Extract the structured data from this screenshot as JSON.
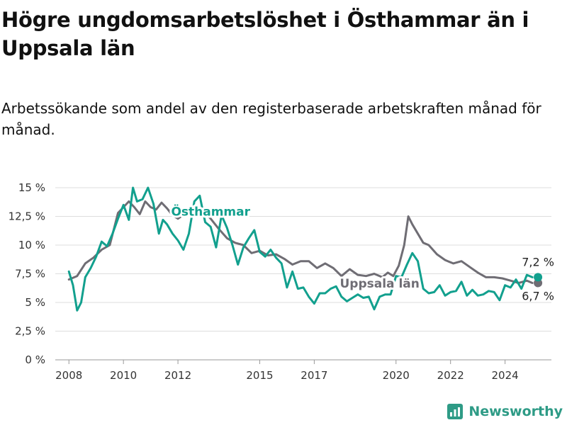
{
  "brand": {
    "name": "Newsworthy",
    "icon": "newsworthy-chart-icon",
    "color": "#2e9b86"
  },
  "colors": {
    "osthammar": "#12a08e",
    "uppsala": "#6f6d74",
    "grid": "#dddddd"
  },
  "chart_data": {
    "type": "line",
    "title": "Högre ungdomsarbetslöshet i Östhammar än i Uppsala län",
    "subtitle": "Arbetssökande som andel av den registerbaserade arbetskraften månad för månad.",
    "xlabel": "",
    "ylabel": "",
    "ylim": [
      0,
      15
    ],
    "xlim": [
      2007.5,
      2025.7
    ],
    "yticks": [
      {
        "value": 0,
        "label": "0 %"
      },
      {
        "value": 2.5,
        "label": "2,5 %"
      },
      {
        "value": 5,
        "label": "5 %"
      },
      {
        "value": 7.5,
        "label": "7,5 %"
      },
      {
        "value": 10,
        "label": "10 %"
      },
      {
        "value": 12.5,
        "label": "12,5 %"
      },
      {
        "value": 15,
        "label": "15 %"
      }
    ],
    "xticks": [
      {
        "value": 2008,
        "label": "2008"
      },
      {
        "value": 2010,
        "label": "2010"
      },
      {
        "value": 2012,
        "label": "2012"
      },
      {
        "value": 2015,
        "label": "2015"
      },
      {
        "value": 2017,
        "label": "2017"
      },
      {
        "value": 2020,
        "label": "2020"
      },
      {
        "value": 2022,
        "label": "2022"
      },
      {
        "value": 2024,
        "label": "2024"
      }
    ],
    "grid": true,
    "legend": "inline labels",
    "series": [
      {
        "name": "Uppsala län",
        "color": "#6f6d74",
        "end_label": "6,7 %",
        "x": [
          2008.0,
          2008.3,
          2008.6,
          2008.9,
          2009.2,
          2009.5,
          2009.8,
          2010.0,
          2010.2,
          2010.4,
          2010.6,
          2010.8,
          2011.0,
          2011.2,
          2011.4,
          2011.6,
          2011.8,
          2012.0,
          2012.3,
          2012.6,
          2012.9,
          2013.2,
          2013.5,
          2013.8,
          2014.1,
          2014.4,
          2014.7,
          2015.0,
          2015.3,
          2015.6,
          2015.9,
          2016.2,
          2016.5,
          2016.8,
          2017.1,
          2017.4,
          2017.7,
          2018.0,
          2018.3,
          2018.6,
          2018.9,
          2019.2,
          2019.5,
          2019.7,
          2019.9,
          2020.1,
          2020.3,
          2020.45,
          2020.6,
          2020.8,
          2021.0,
          2021.2,
          2021.5,
          2021.8,
          2022.1,
          2022.4,
          2022.7,
          2023.0,
          2023.3,
          2023.6,
          2023.9,
          2024.2,
          2024.5,
          2024.8,
          2025.0
        ],
        "values": [
          7.0,
          7.3,
          8.4,
          8.9,
          9.6,
          10.0,
          12.8,
          13.3,
          13.8,
          13.3,
          12.7,
          13.8,
          13.3,
          13.1,
          13.7,
          13.2,
          12.6,
          12.3,
          12.8,
          13.3,
          13.1,
          12.3,
          11.4,
          10.6,
          10.2,
          10.0,
          9.3,
          9.5,
          9.1,
          9.2,
          8.8,
          8.3,
          8.6,
          8.6,
          8.0,
          8.4,
          8.0,
          7.3,
          7.9,
          7.4,
          7.3,
          7.5,
          7.2,
          7.6,
          7.3,
          8.2,
          10.0,
          12.5,
          11.8,
          11.0,
          10.2,
          10.0,
          9.2,
          8.7,
          8.4,
          8.6,
          8.1,
          7.6,
          7.2,
          7.2,
          7.1,
          6.9,
          6.7,
          6.9,
          6.7
        ]
      },
      {
        "name": "Östhammar",
        "color": "#12a08e",
        "end_label": "7,2 %",
        "x": [
          2008.0,
          2008.15,
          2008.3,
          2008.45,
          2008.6,
          2008.8,
          2009.0,
          2009.2,
          2009.4,
          2009.6,
          2009.8,
          2010.0,
          2010.2,
          2010.35,
          2010.5,
          2010.7,
          2010.9,
          2011.1,
          2011.3,
          2011.45,
          2011.6,
          2011.8,
          2012.0,
          2012.2,
          2012.4,
          2012.6,
          2012.8,
          2013.0,
          2013.2,
          2013.4,
          2013.6,
          2013.8,
          2014.0,
          2014.2,
          2014.4,
          2014.6,
          2014.8,
          2015.0,
          2015.2,
          2015.4,
          2015.6,
          2015.8,
          2016.0,
          2016.2,
          2016.4,
          2016.6,
          2016.8,
          2017.0,
          2017.2,
          2017.4,
          2017.6,
          2017.8,
          2018.0,
          2018.2,
          2018.4,
          2018.6,
          2018.8,
          2019.0,
          2019.2,
          2019.4,
          2019.6,
          2019.8,
          2020.0,
          2020.2,
          2020.4,
          2020.6,
          2020.8,
          2021.0,
          2021.2,
          2021.4,
          2021.6,
          2021.8,
          2022.0,
          2022.2,
          2022.4,
          2022.6,
          2022.8,
          2023.0,
          2023.2,
          2023.4,
          2023.6,
          2023.8,
          2024.0,
          2024.2,
          2024.4,
          2024.6,
          2024.8,
          2025.0
        ],
        "values": [
          7.7,
          6.5,
          4.3,
          5.0,
          7.2,
          8.0,
          9.0,
          10.3,
          9.9,
          11.0,
          12.3,
          13.5,
          12.2,
          15.0,
          13.8,
          14.0,
          15.0,
          13.6,
          11.0,
          12.2,
          11.8,
          11.0,
          10.4,
          9.6,
          11.0,
          13.8,
          14.3,
          12.0,
          11.6,
          9.8,
          12.6,
          11.5,
          10.0,
          8.3,
          9.8,
          10.6,
          11.3,
          9.4,
          9.0,
          9.6,
          8.9,
          8.4,
          6.3,
          7.7,
          6.2,
          6.3,
          5.5,
          4.9,
          5.8,
          5.8,
          6.2,
          6.4,
          5.5,
          5.1,
          5.4,
          5.7,
          5.4,
          5.5,
          4.4,
          5.5,
          5.7,
          5.7,
          7.3,
          7.2,
          8.3,
          9.3,
          8.6,
          6.2,
          5.8,
          5.9,
          6.5,
          5.6,
          5.9,
          6.0,
          6.8,
          5.6,
          6.1,
          5.6,
          5.7,
          6.0,
          5.9,
          5.2,
          6.5,
          6.3,
          7.0,
          6.2,
          7.4,
          7.2
        ]
      }
    ]
  }
}
